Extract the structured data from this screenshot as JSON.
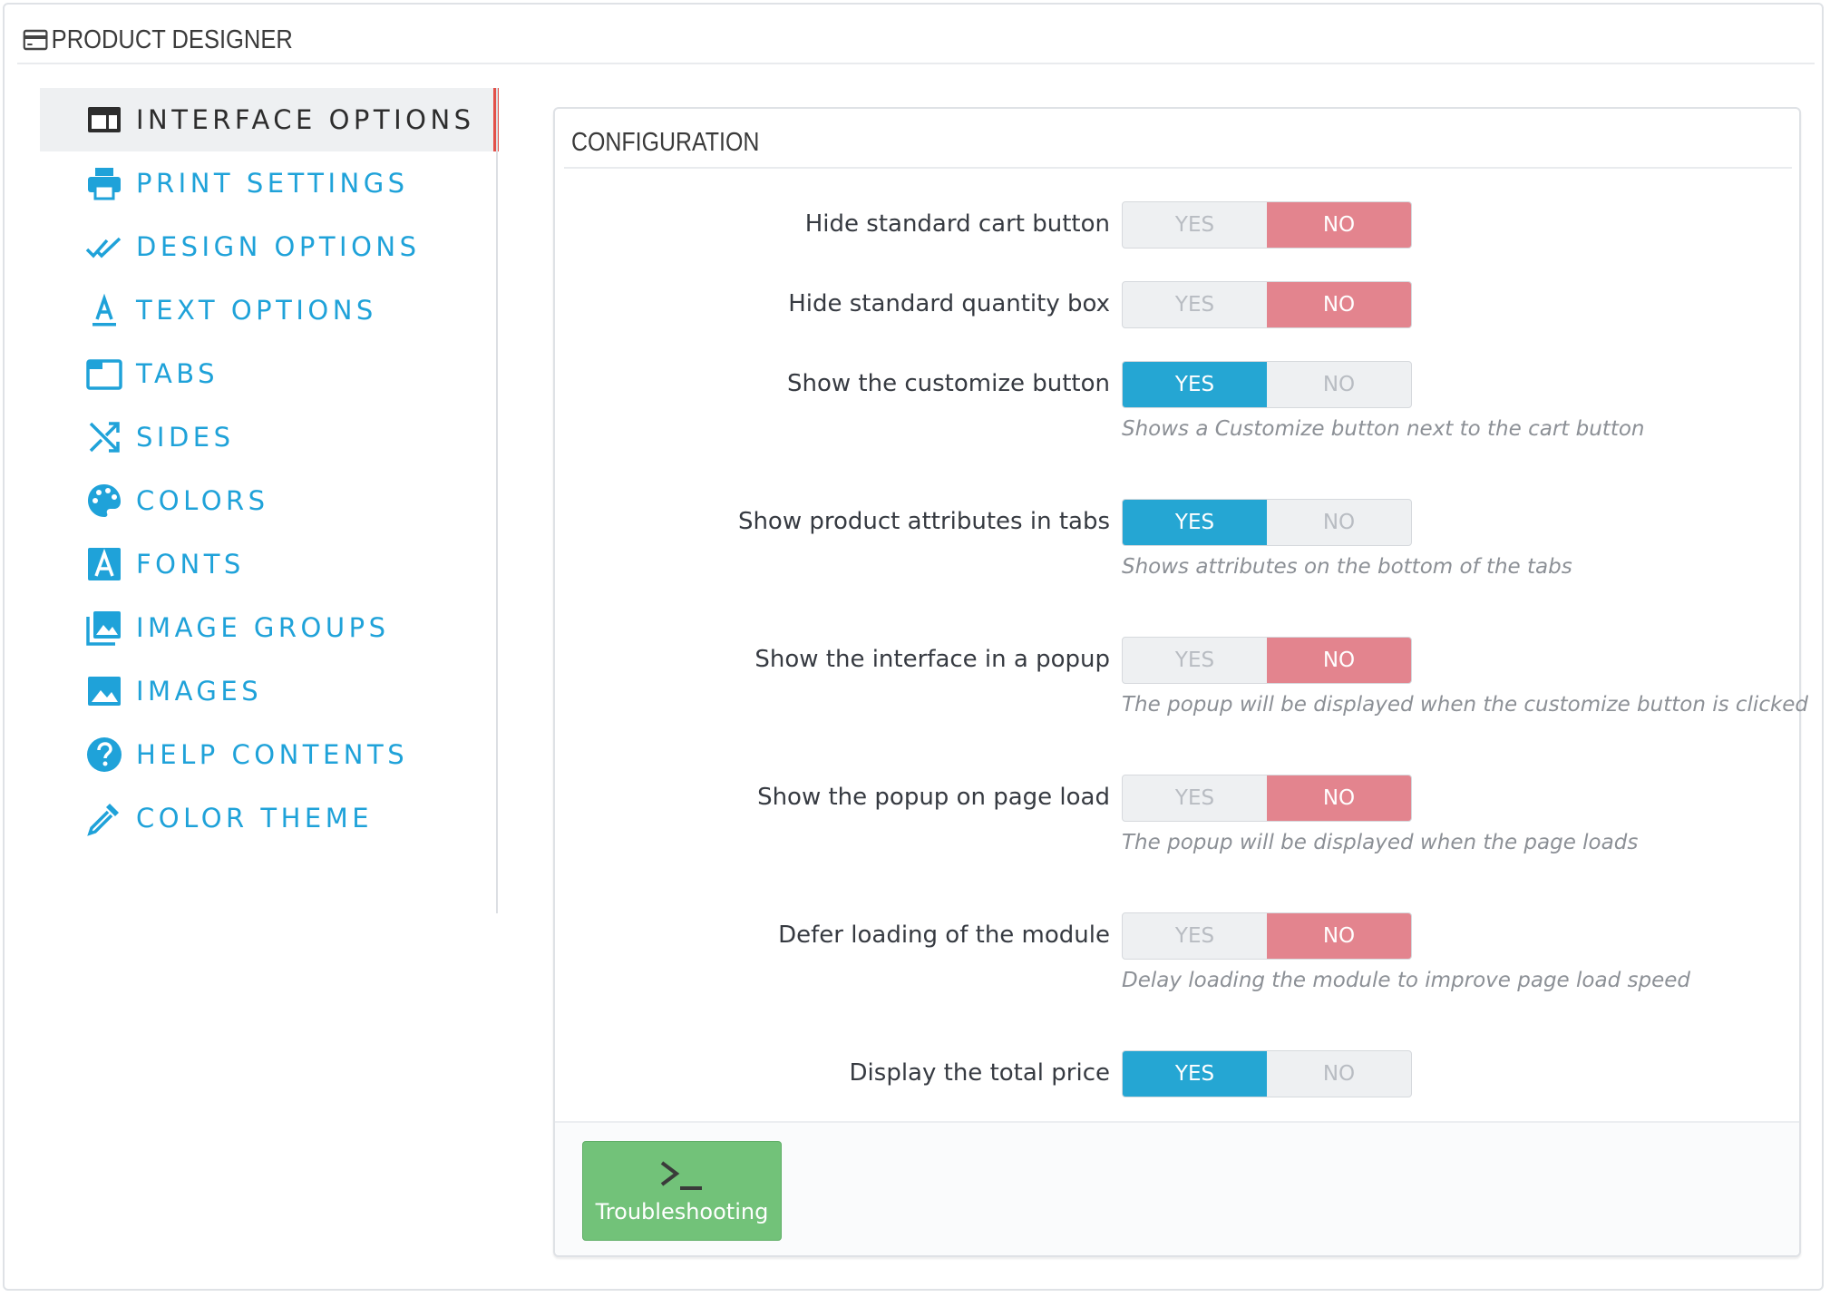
{
  "header": {
    "title": "PRODUCT DESIGNER",
    "icon": "card-icon"
  },
  "sidebar": {
    "items": [
      {
        "label": "INTERFACE OPTIONS",
        "icon": "layout-window-icon",
        "active": true
      },
      {
        "label": "PRINT SETTINGS",
        "icon": "printer-icon",
        "active": false
      },
      {
        "label": "DESIGN OPTIONS",
        "icon": "double-check-icon",
        "active": false
      },
      {
        "label": "TEXT OPTIONS",
        "icon": "text-format-icon",
        "active": false
      },
      {
        "label": "TABS",
        "icon": "folder-tab-icon",
        "active": false
      },
      {
        "label": "SIDES",
        "icon": "shuffle-icon",
        "active": false
      },
      {
        "label": "COLORS",
        "icon": "palette-icon",
        "active": false
      },
      {
        "label": "FONTS",
        "icon": "font-a-icon",
        "active": false
      },
      {
        "label": "IMAGE GROUPS",
        "icon": "image-stack-icon",
        "active": false
      },
      {
        "label": "IMAGES",
        "icon": "image-icon",
        "active": false
      },
      {
        "label": "HELP CONTENTS",
        "icon": "help-circle-icon",
        "active": false
      },
      {
        "label": "COLOR THEME",
        "icon": "eyedropper-icon",
        "active": false
      }
    ]
  },
  "panel": {
    "title": "CONFIGURATION",
    "yes_label": "YES",
    "no_label": "NO",
    "settings": [
      {
        "label": "Hide standard cart button",
        "value": "NO",
        "help": ""
      },
      {
        "label": "Hide standard quantity box",
        "value": "NO",
        "help": ""
      },
      {
        "label": "Show the customize button",
        "value": "YES",
        "help": "Shows a Customize button next to the cart button"
      },
      {
        "label": "Show product attributes in tabs",
        "value": "YES",
        "help": "Shows attributes on the bottom of the tabs"
      },
      {
        "label": "Show the interface in a popup",
        "value": "NO",
        "help": "The popup will be displayed when the customize button is clicked"
      },
      {
        "label": "Show the popup on page load",
        "value": "NO",
        "help": "The popup will be displayed when the page loads"
      },
      {
        "label": "Defer loading of the module",
        "value": "NO",
        "help": "Delay loading the module to improve page load speed"
      },
      {
        "label": "Display the total price",
        "value": "YES",
        "help": ""
      }
    ],
    "footer": {
      "button_label": "Troubleshooting",
      "button_icon": "terminal-icon"
    }
  },
  "colors": {
    "accent": "#1fa2d9",
    "yes_active": "#25a6d3",
    "no_active": "#e3848e",
    "active_marker": "#e2514a",
    "button_green": "#72c279"
  }
}
